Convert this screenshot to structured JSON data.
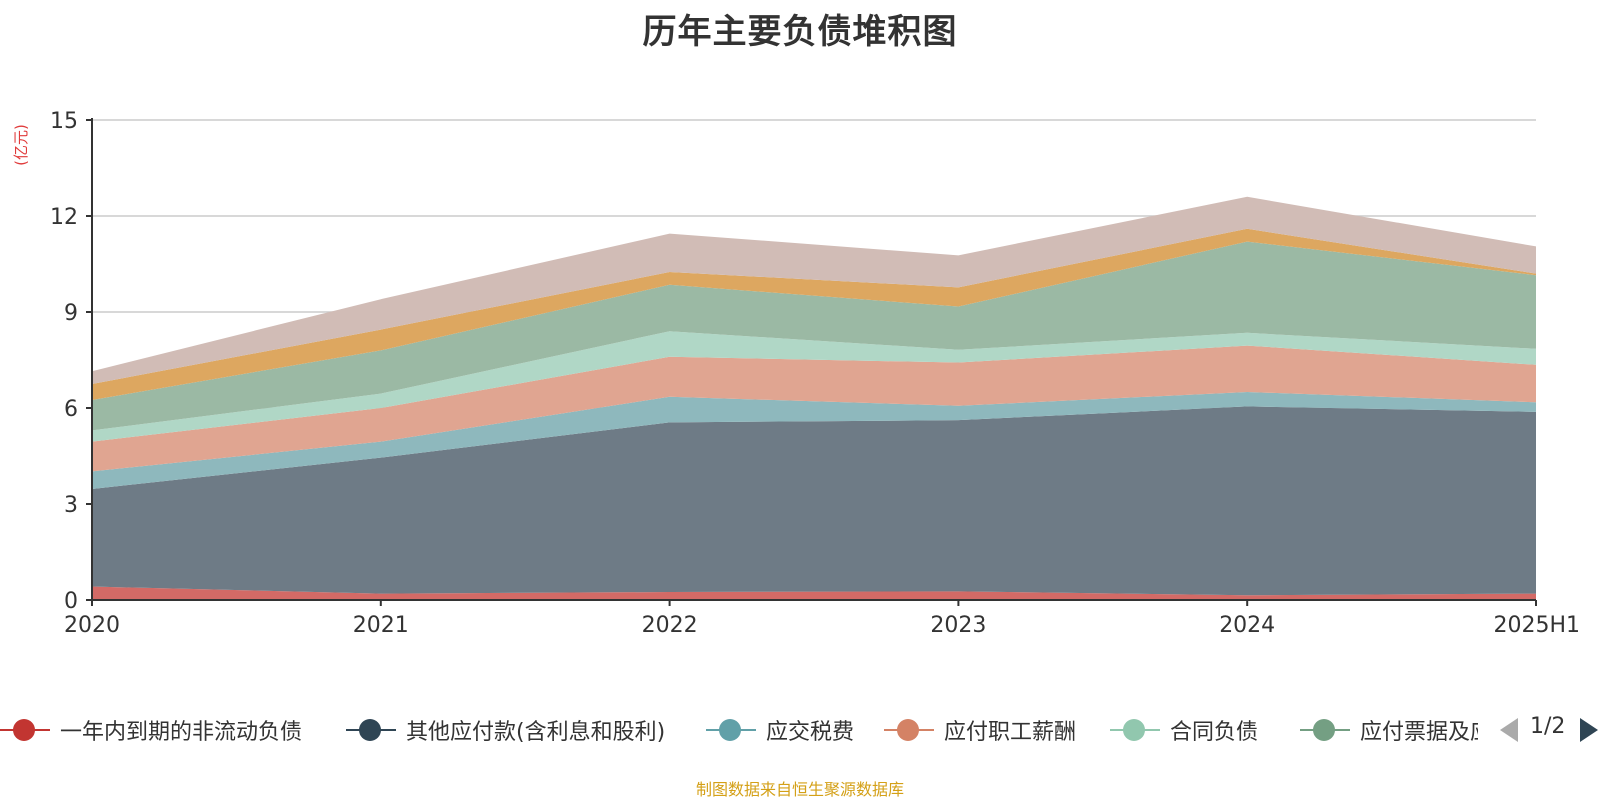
{
  "title": "历年主要负债堆积图",
  "source_note": "制图数据来自恒生聚源数据库",
  "pager": {
    "text": "1/2"
  },
  "legend": [
    {
      "name": "一年内到期的非流动负债",
      "color": "#c23531"
    },
    {
      "name": "其他应付款(含利息和股利)",
      "color": "#2f4554"
    },
    {
      "name": "应交税费",
      "color": "#61a0a8"
    },
    {
      "name": "应付职工薪酬",
      "color": "#d48265"
    },
    {
      "name": "合同负债",
      "color": "#91c7ae"
    },
    {
      "name": "应付票据及应付账款",
      "color": "#749f83"
    }
  ],
  "chart_data": {
    "type": "area",
    "stacked": true,
    "title": "历年主要负债堆积图",
    "ylabel": "(亿元)",
    "ylim": [
      0,
      15
    ],
    "yticks": [
      0,
      3,
      6,
      9,
      12,
      15
    ],
    "grid": true,
    "legend_position": "bottom",
    "categories": [
      "2020",
      "2021",
      "2022",
      "2023",
      "2024",
      "2025H1"
    ],
    "series": [
      {
        "name": "一年内到期的非流动负债",
        "color": "#d36a66",
        "values": [
          0.42,
          0.2,
          0.25,
          0.27,
          0.15,
          0.2
        ]
      },
      {
        "name": "其他应付款(含利息和股利)",
        "color": "#6e7b86",
        "values": [
          3.05,
          4.25,
          5.3,
          5.35,
          5.9,
          5.68
        ]
      },
      {
        "name": "应交税费",
        "color": "#8eb8bd",
        "values": [
          0.55,
          0.5,
          0.8,
          0.45,
          0.45,
          0.3
        ]
      },
      {
        "name": "应付职工薪酬",
        "color": "#e0a591",
        "values": [
          0.93,
          1.05,
          1.25,
          1.35,
          1.45,
          1.17
        ]
      },
      {
        "name": "合同负债",
        "color": "#b0d7c6",
        "values": [
          0.35,
          0.45,
          0.8,
          0.4,
          0.4,
          0.5
        ]
      },
      {
        "name": "应付票据及应付账款",
        "color": "#9bb9a4",
        "values": [
          0.95,
          1.35,
          1.45,
          1.35,
          2.85,
          2.3
        ]
      },
      {
        "color": "#dda760",
        "values": [
          0.5,
          0.65,
          0.4,
          0.6,
          0.4,
          0.05
        ]
      },
      {
        "color": "#d1bcb6",
        "values": [
          0.4,
          0.95,
          1.2,
          1.0,
          1.0,
          0.85
        ]
      }
    ]
  }
}
